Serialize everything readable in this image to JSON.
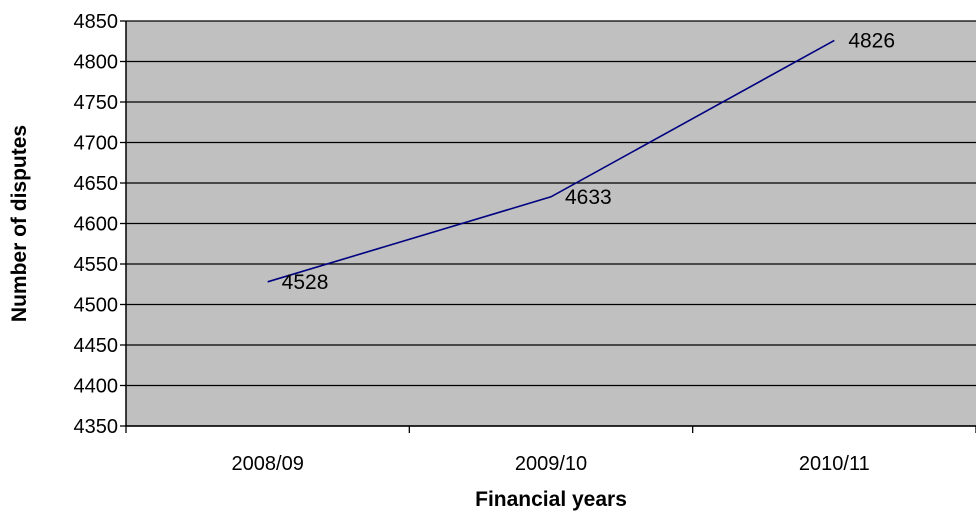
{
  "chart_data": {
    "type": "line",
    "categories": [
      "2008/09",
      "2009/10",
      "2010/11"
    ],
    "series": [
      {
        "values": [
          4528,
          4633,
          4826
        ],
        "data_labels": [
          "4528",
          "4633",
          "4826"
        ]
      }
    ],
    "xlabel": "Financial years",
    "ylabel": "Number of disputes",
    "ylim": [
      4350,
      4850
    ],
    "yticks": [
      4350,
      4400,
      4450,
      4500,
      4550,
      4600,
      4650,
      4700,
      4750,
      4800,
      4850
    ],
    "grid": true,
    "legend": "none",
    "colors": {
      "plot_background": "#c0c0c0",
      "line": "#000080",
      "gridline": "#000000"
    }
  }
}
